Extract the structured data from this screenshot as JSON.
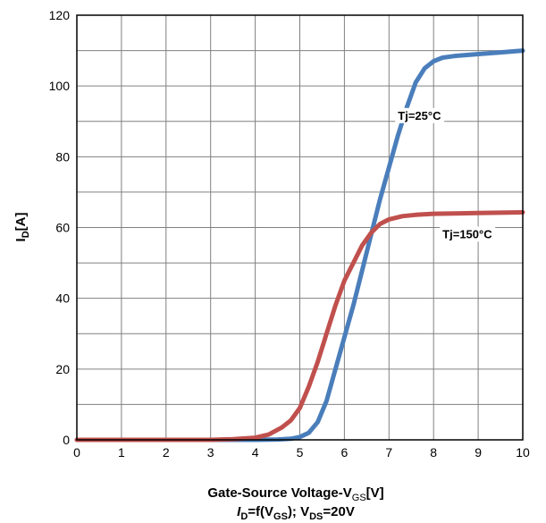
{
  "chart_data": {
    "type": "line",
    "xlabel": {
      "main": "Gate-Source Voltage-V",
      "sub": "GS",
      "tail": "[V]"
    },
    "ylabel": {
      "main": "I",
      "sub": "D",
      "tail": "[A]"
    },
    "caption": {
      "p1": "I",
      "p1sub": "D",
      "p2": "=f(V",
      "p2sub": "GS",
      "p3": "); V",
      "p3sub": "DS",
      "p4": "=20V"
    },
    "xlim": [
      0,
      10
    ],
    "ylim": [
      0,
      120
    ],
    "xticks": [
      "0",
      "1",
      "2",
      "3",
      "4",
      "5",
      "6",
      "7",
      "8",
      "9",
      "10"
    ],
    "yticks": [
      "0",
      "20",
      "40",
      "60",
      "80",
      "100",
      "120"
    ],
    "grid": true,
    "minor_grid_y": 10,
    "series": [
      {
        "name": "Tj=25°C",
        "color": "#4a7ebb",
        "x": [
          0,
          4.0,
          4.5,
          4.8,
          5.0,
          5.2,
          5.4,
          5.6,
          5.8,
          6.0,
          6.2,
          6.4,
          6.6,
          6.8,
          7.0,
          7.2,
          7.4,
          7.6,
          7.8,
          8.0,
          8.2,
          8.5,
          9.0,
          9.5,
          10.0
        ],
        "y": [
          0,
          0,
          0.1,
          0.3,
          0.8,
          2,
          5,
          11,
          20,
          29,
          38,
          48,
          58,
          68,
          77,
          86,
          94,
          101,
          105,
          107,
          108,
          108.5,
          109,
          109.5,
          110
        ]
      },
      {
        "name": "Tj=150°C",
        "color": "#c0504d",
        "x": [
          0,
          3.0,
          3.5,
          4.0,
          4.3,
          4.6,
          4.8,
          5.0,
          5.2,
          5.4,
          5.6,
          5.8,
          6.0,
          6.2,
          6.4,
          6.6,
          6.8,
          7.0,
          7.3,
          7.6,
          8.0,
          8.5,
          9.0,
          9.5,
          10.0
        ],
        "y": [
          0,
          0,
          0.2,
          0.6,
          1.5,
          3.5,
          5.5,
          9,
          15,
          22,
          30,
          38,
          45,
          50,
          55,
          58.5,
          61,
          62.3,
          63.2,
          63.6,
          63.9,
          64,
          64.1,
          64.2,
          64.3
        ]
      }
    ],
    "annotations": [
      {
        "text": "Tj=25°C",
        "x": 7.2,
        "y": 90.5
      },
      {
        "text": "Tj=150°C",
        "x": 8.2,
        "y": 57
      }
    ]
  }
}
